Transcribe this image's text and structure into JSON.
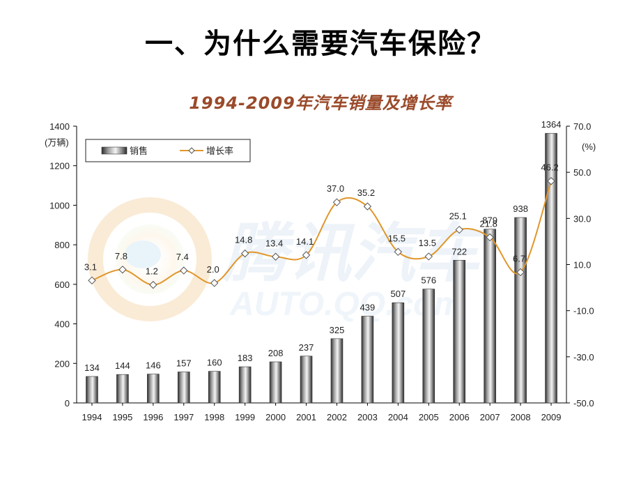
{
  "slide": {
    "title": "一、为什么需要汽车保险？"
  },
  "watermark": {
    "text_cn": "腾讯汽车",
    "text_en": "AUTO.QQ.com"
  },
  "chart_data": {
    "type": "bar+line",
    "title": "1994-2009年汽车销量及增长率",
    "categories": [
      "1994",
      "1995",
      "1996",
      "1997",
      "1998",
      "1999",
      "2000",
      "2001",
      "2002",
      "2003",
      "2004",
      "2005",
      "2006",
      "2007",
      "2008",
      "2009"
    ],
    "series": [
      {
        "name": "销售",
        "type": "bar",
        "axis": "left",
        "values": [
          134,
          144,
          146,
          157,
          160,
          183,
          208,
          237,
          325,
          439,
          507,
          576,
          722,
          879,
          938,
          1364
        ]
      },
      {
        "name": "增长率",
        "type": "line",
        "axis": "right",
        "values": [
          3.1,
          7.8,
          1.2,
          7.4,
          2.0,
          14.8,
          13.4,
          14.1,
          37.0,
          35.2,
          15.5,
          13.5,
          25.1,
          21.8,
          6.7,
          46.2
        ]
      }
    ],
    "y_left": {
      "unit": "(万辆)",
      "min": 0,
      "max": 1400,
      "step": 200,
      "ticks": [
        "0",
        "200",
        "400",
        "600",
        "800",
        "1000",
        "1200",
        "1400"
      ]
    },
    "y_right": {
      "unit": "(%)",
      "min": -50,
      "max": 70,
      "step": 20,
      "ticks": [
        "-50.0",
        "-30.0",
        "-10.0",
        "10.0",
        "30.0",
        "50.0",
        "70.0"
      ]
    },
    "bar_labels": [
      "134",
      "144",
      "146",
      "157",
      "160",
      "183",
      "208",
      "237",
      "325",
      "439",
      "507",
      "576",
      "722",
      "879",
      "938",
      "1364"
    ],
    "line_labels": [
      "3.1",
      "7.8",
      "1.2",
      "7.4",
      "2.0",
      "14.8",
      "13.4",
      "14.1",
      "37.0",
      "35.2",
      "15.5",
      "13.5",
      "25.1",
      "21.8",
      "6.7",
      "46.2"
    ],
    "legend_position": "top-left",
    "grid": false,
    "colors": {
      "line": "#e0962a",
      "bar_dark": "#3a3a3a",
      "bar_light": "#f2f2f2",
      "title": "#9a4a2a"
    }
  }
}
